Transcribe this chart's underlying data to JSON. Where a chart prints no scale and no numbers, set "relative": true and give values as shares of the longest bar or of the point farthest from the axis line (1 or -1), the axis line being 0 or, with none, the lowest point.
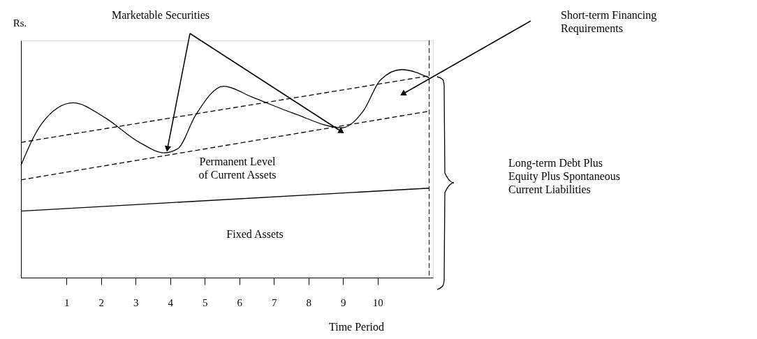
{
  "chart_data": {
    "type": "line",
    "relative": true,
    "xlabel": "Time Period",
    "ylabel": "Rs.",
    "xlim": [
      -0.32,
      11.6
    ],
    "xticks": [
      1,
      2,
      3,
      4,
      5,
      6,
      7,
      8,
      9,
      10
    ],
    "series": [
      {
        "color": "#000000",
        "line_style": "solid",
        "x": [
          -0.32,
          0.28,
          1.19,
          2.1,
          3.11,
          3.82,
          4.22,
          4.73,
          5.54,
          6.34,
          7.56,
          8.97,
          9.58,
          10.08,
          10.69,
          11.49
        ],
        "values": [
          0.54,
          0.74,
          0.84,
          0.77,
          0.65,
          0.6,
          0.62,
          0.78,
          0.92,
          0.87,
          0.79,
          0.72,
          0.8,
          0.95,
          1.0,
          0.96
        ]
      },
      {
        "color": "#000000",
        "line_style": "dashed",
        "x": [
          -0.32,
          11.49
        ],
        "values": [
          0.65,
          0.97
        ]
      },
      {
        "color": "#000000",
        "line_style": "dashed",
        "x": [
          -0.32,
          11.49
        ],
        "values": [
          0.47,
          0.8
        ]
      },
      {
        "color": "#000000",
        "line_style": "solid",
        "x": [
          -0.32,
          11.49
        ],
        "values": [
          0.32,
          0.43
        ]
      }
    ],
    "ref_lines": [
      {
        "axis": "x",
        "value": 11.49,
        "line_style": "dashed"
      }
    ],
    "annotations": [
      "Marketable Securities",
      "Short-term Financing Requirements",
      "Permanent Level of Current Assets",
      "Fixed Assets",
      "Long-term Debt Plus Equity Plus Spontaneous Current Liabilities"
    ]
  }
}
